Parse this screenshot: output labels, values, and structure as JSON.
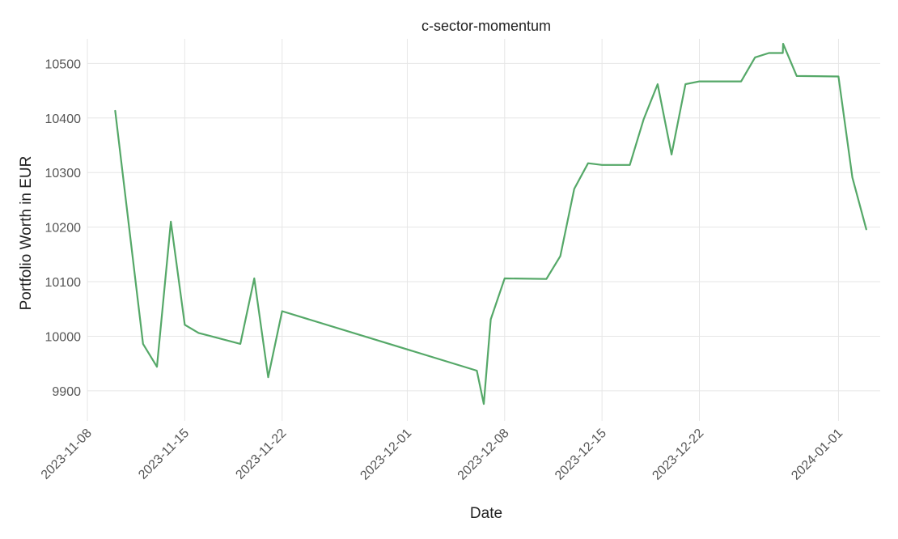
{
  "chart_data": {
    "type": "line",
    "title": "c-sector-momentum",
    "xlabel": "Date",
    "ylabel": "Portfolio Worth in EUR",
    "x_is_date": true,
    "xlim": [
      "2023-11-08",
      "2024-01-04"
    ],
    "ylim": [
      9845,
      10545
    ],
    "x_ticks": [
      "2023-11-08",
      "2023-11-15",
      "2023-11-22",
      "2023-12-01",
      "2023-12-08",
      "2023-12-15",
      "2023-12-22",
      "2024-01-01"
    ],
    "y_ticks": [
      9900,
      10000,
      10100,
      10200,
      10300,
      10400,
      10500
    ],
    "grid": true,
    "line_color": "#55a868",
    "series": [
      {
        "x": [
          "2023-11-10",
          "2023-11-12",
          "2023-11-13",
          "2023-11-14",
          "2023-11-15",
          "2023-11-16",
          "2023-11-19",
          "2023-11-20",
          "2023-11-21",
          "2023-11-22",
          "2023-12-06",
          "2023-12-06T12:00",
          "2023-12-07",
          "2023-12-08",
          "2023-12-11",
          "2023-12-12",
          "2023-12-13",
          "2023-12-14",
          "2023-12-15",
          "2023-12-17",
          "2023-12-18",
          "2023-12-19",
          "2023-12-20",
          "2023-12-21",
          "2023-12-22",
          "2023-12-25",
          "2023-12-26",
          "2023-12-27",
          "2023-12-28",
          "2023-12-28T00:30",
          "2023-12-29",
          "2024-01-01",
          "2024-01-02",
          "2024-01-03"
        ],
        "values": [
          10413,
          9986,
          9944,
          10210,
          10021,
          10006,
          9986,
          10106,
          9925,
          10046,
          9937,
          9876,
          10031,
          10106,
          10105,
          10147,
          10270,
          10317,
          10314,
          10314,
          10398,
          10462,
          10333,
          10462,
          10467,
          10467,
          10511,
          10519,
          10519,
          10536,
          10477,
          10476,
          10291,
          10196
        ]
      }
    ]
  }
}
